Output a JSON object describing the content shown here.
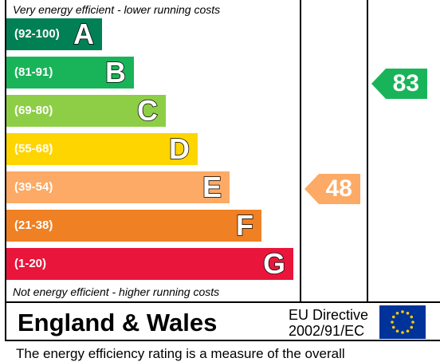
{
  "header_note": "Very energy efficient - lower running costs",
  "footer_note": "Not energy efficient - higher running costs",
  "bands": [
    {
      "range": "(92-100)",
      "letter": "A",
      "color": "#008054"
    },
    {
      "range": "(81-91)",
      "letter": "B",
      "color": "#19b459"
    },
    {
      "range": "(69-80)",
      "letter": "C",
      "color": "#8dce46"
    },
    {
      "range": "(55-68)",
      "letter": "D",
      "color": "#ffd500"
    },
    {
      "range": "(39-54)",
      "letter": "E",
      "color": "#fcaa65"
    },
    {
      "range": "(21-38)",
      "letter": "F",
      "color": "#ef8023"
    },
    {
      "range": "(1-20)",
      "letter": "G",
      "color": "#e9153b"
    }
  ],
  "current": {
    "value": "48",
    "color": "#fcaa65"
  },
  "potential": {
    "value": "83",
    "color": "#19b459"
  },
  "region": "England & Wales",
  "directive": {
    "line1": "EU Directive",
    "line2": "2002/91/EC"
  },
  "flag_icon": "eu-flag-icon",
  "footer_text": "The energy efficiency rating is a measure of the overall"
}
